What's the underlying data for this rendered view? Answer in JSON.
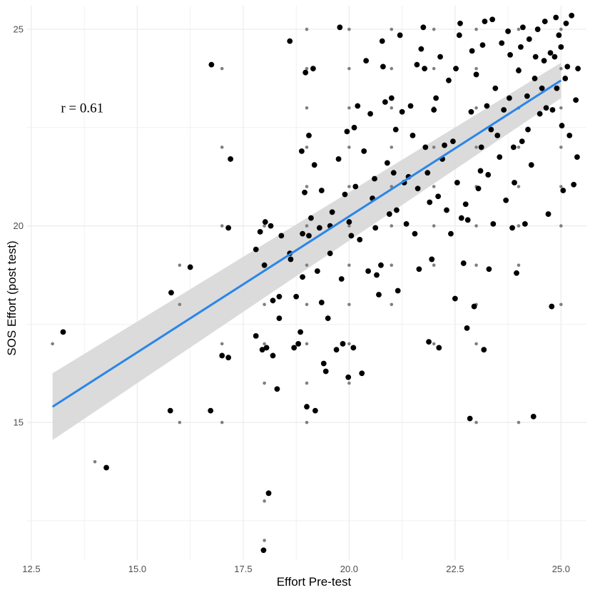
{
  "chart_data": {
    "type": "scatter",
    "title": "",
    "xlabel": "Effort Pre-test",
    "ylabel": "SOS Effort (post test)",
    "xlim": [
      12.4,
      25.6
    ],
    "ylim": [
      11.5,
      25.6
    ],
    "x_ticks": [
      12.5,
      15.0,
      17.5,
      20.0,
      22.5,
      25.0
    ],
    "x_tick_labels": [
      "12.5",
      "15.0",
      "17.5",
      "20.0",
      "22.5",
      "25.0"
    ],
    "y_ticks": [
      15,
      20,
      25
    ],
    "y_tick_labels": [
      "15",
      "20",
      "25"
    ],
    "grid": true,
    "annotation": {
      "text": "r = 0.61",
      "x": 13.7,
      "y": 23.0
    },
    "regression": {
      "x": [
        13.0,
        25.0
      ],
      "y": [
        15.4,
        23.7
      ],
      "ci_lower": [
        14.55,
        23.25
      ],
      "ci_upper": [
        16.25,
        24.15
      ],
      "line_color": "#2b86e8",
      "band_color": "#d9d9d9"
    },
    "point_color": "#000000",
    "raw_point_color": "#7f7f7f",
    "series": [
      {
        "name": "raw",
        "points": [
          [
            13,
            17
          ],
          [
            14,
            14
          ],
          [
            16,
            18
          ],
          [
            16,
            19
          ],
          [
            16,
            15
          ],
          [
            17,
            24
          ],
          [
            17,
            22
          ],
          [
            17,
            20
          ],
          [
            17,
            17
          ],
          [
            17,
            15
          ],
          [
            18,
            20
          ],
          [
            18,
            18
          ],
          [
            18,
            17
          ],
          [
            18,
            16
          ],
          [
            18,
            13
          ],
          [
            18,
            12
          ],
          [
            19,
            24
          ],
          [
            19,
            23
          ],
          [
            19,
            22
          ],
          [
            19,
            21
          ],
          [
            19,
            20
          ],
          [
            19,
            19
          ],
          [
            19,
            18
          ],
          [
            19,
            17
          ],
          [
            19,
            16
          ],
          [
            19,
            15
          ],
          [
            19,
            25
          ],
          [
            20,
            25
          ],
          [
            20,
            24
          ],
          [
            20,
            23
          ],
          [
            20,
            22
          ],
          [
            20,
            21
          ],
          [
            20,
            20
          ],
          [
            20,
            19
          ],
          [
            20,
            18
          ],
          [
            20,
            17
          ],
          [
            20,
            16
          ],
          [
            21,
            25
          ],
          [
            21,
            24
          ],
          [
            21,
            23
          ],
          [
            21,
            22
          ],
          [
            21,
            21
          ],
          [
            21,
            20
          ],
          [
            21,
            19
          ],
          [
            21,
            18
          ],
          [
            22,
            25
          ],
          [
            22,
            24
          ],
          [
            22,
            23
          ],
          [
            22,
            22
          ],
          [
            22,
            21
          ],
          [
            22,
            20
          ],
          [
            22,
            19
          ],
          [
            22,
            17
          ],
          [
            23,
            25
          ],
          [
            23,
            24
          ],
          [
            23,
            23
          ],
          [
            23,
            22
          ],
          [
            23,
            21
          ],
          [
            23,
            20
          ],
          [
            23,
            19
          ],
          [
            23,
            18
          ],
          [
            23,
            17
          ],
          [
            23,
            15
          ],
          [
            24,
            25
          ],
          [
            24,
            24
          ],
          [
            24,
            23
          ],
          [
            24,
            22
          ],
          [
            24,
            21
          ],
          [
            24,
            20
          ],
          [
            24,
            19
          ],
          [
            24,
            15
          ],
          [
            25,
            25
          ],
          [
            25,
            24
          ],
          [
            25,
            23
          ],
          [
            25,
            22
          ],
          [
            25,
            21
          ],
          [
            25,
            20
          ],
          [
            25,
            18
          ]
        ]
      },
      {
        "name": "jittered",
        "points": [
          [
            13.25,
            17.3
          ],
          [
            14.27,
            13.85
          ],
          [
            15.8,
            18.3
          ],
          [
            15.78,
            15.3
          ],
          [
            16.25,
            18.95
          ],
          [
            16.75,
            24.1
          ],
          [
            16.73,
            15.3
          ],
          [
            17.0,
            16.7
          ],
          [
            17.15,
            16.65
          ],
          [
            17.15,
            19.95
          ],
          [
            17.2,
            21.7
          ],
          [
            17.8,
            19.4
          ],
          [
            17.8,
            17.2
          ],
          [
            17.9,
            19.85
          ],
          [
            17.95,
            16.85
          ],
          [
            17.98,
            11.75
          ],
          [
            18.0,
            19.0
          ],
          [
            18.02,
            20.1
          ],
          [
            18.05,
            16.9
          ],
          [
            18.1,
            13.2
          ],
          [
            18.15,
            20.0
          ],
          [
            18.2,
            16.7
          ],
          [
            18.2,
            18.1
          ],
          [
            18.3,
            15.85
          ],
          [
            18.35,
            17.65
          ],
          [
            18.35,
            18.2
          ],
          [
            18.4,
            19.75
          ],
          [
            18.6,
            24.7
          ],
          [
            18.6,
            19.3
          ],
          [
            18.62,
            19.15
          ],
          [
            18.7,
            16.9
          ],
          [
            18.75,
            18.2
          ],
          [
            18.8,
            17.0
          ],
          [
            18.85,
            17.3
          ],
          [
            18.88,
            21.9
          ],
          [
            18.9,
            19.8
          ],
          [
            18.9,
            18.7
          ],
          [
            18.95,
            20.85
          ],
          [
            18.97,
            23.9
          ],
          [
            19.0,
            15.4
          ],
          [
            19.05,
            22.3
          ],
          [
            19.05,
            19.75
          ],
          [
            19.1,
            20.2
          ],
          [
            19.15,
            24.0
          ],
          [
            19.18,
            21.55
          ],
          [
            19.2,
            15.3
          ],
          [
            19.25,
            18.85
          ],
          [
            19.3,
            19.95
          ],
          [
            19.35,
            20.9
          ],
          [
            19.35,
            18.05
          ],
          [
            19.4,
            16.5
          ],
          [
            19.45,
            16.3
          ],
          [
            19.5,
            17.65
          ],
          [
            19.55,
            19.3
          ],
          [
            19.55,
            20.0
          ],
          [
            19.6,
            20.35
          ],
          [
            19.7,
            16.85
          ],
          [
            19.75,
            21.7
          ],
          [
            19.78,
            25.05
          ],
          [
            19.82,
            18.65
          ],
          [
            19.85,
            17.0
          ],
          [
            19.9,
            20.8
          ],
          [
            19.95,
            22.4
          ],
          [
            19.98,
            16.15
          ],
          [
            20.0,
            20.1
          ],
          [
            20.05,
            19.75
          ],
          [
            20.1,
            16.9
          ],
          [
            20.12,
            22.5
          ],
          [
            20.15,
            21.0
          ],
          [
            20.2,
            23.05
          ],
          [
            20.25,
            19.65
          ],
          [
            20.3,
            16.25
          ],
          [
            20.35,
            21.9
          ],
          [
            20.4,
            24.2
          ],
          [
            20.45,
            18.85
          ],
          [
            20.5,
            22.85
          ],
          [
            20.55,
            20.7
          ],
          [
            20.6,
            21.2
          ],
          [
            20.62,
            19.95
          ],
          [
            20.65,
            18.75
          ],
          [
            20.7,
            18.25
          ],
          [
            20.75,
            19.0
          ],
          [
            20.78,
            24.7
          ],
          [
            20.8,
            24.05
          ],
          [
            20.85,
            23.15
          ],
          [
            20.9,
            21.6
          ],
          [
            20.95,
            20.3
          ],
          [
            21.0,
            23.25
          ],
          [
            21.05,
            21.35
          ],
          [
            21.1,
            22.45
          ],
          [
            21.12,
            20.4
          ],
          [
            21.15,
            18.35
          ],
          [
            21.2,
            24.85
          ],
          [
            21.25,
            22.9
          ],
          [
            21.3,
            21.1
          ],
          [
            21.35,
            20.05
          ],
          [
            21.4,
            21.25
          ],
          [
            21.45,
            23.05
          ],
          [
            21.5,
            22.3
          ],
          [
            21.55,
            19.8
          ],
          [
            21.6,
            24.1
          ],
          [
            21.62,
            20.95
          ],
          [
            21.65,
            18.9
          ],
          [
            21.7,
            24.5
          ],
          [
            21.75,
            25.05
          ],
          [
            21.78,
            24.0
          ],
          [
            21.8,
            22.0
          ],
          [
            21.85,
            21.35
          ],
          [
            21.88,
            17.05
          ],
          [
            21.9,
            20.6
          ],
          [
            21.95,
            19.15
          ],
          [
            22.0,
            22.95
          ],
          [
            22.05,
            23.25
          ],
          [
            22.1,
            20.75
          ],
          [
            22.12,
            16.9
          ],
          [
            22.15,
            24.3
          ],
          [
            22.2,
            21.7
          ],
          [
            22.25,
            22.05
          ],
          [
            22.3,
            20.4
          ],
          [
            22.35,
            23.7
          ],
          [
            22.4,
            19.8
          ],
          [
            22.45,
            22.15
          ],
          [
            22.5,
            18.15
          ],
          [
            22.52,
            24.0
          ],
          [
            22.55,
            21.1
          ],
          [
            22.6,
            24.85
          ],
          [
            22.62,
            25.15
          ],
          [
            22.65,
            20.2
          ],
          [
            22.7,
            19.05
          ],
          [
            22.75,
            20.55
          ],
          [
            22.78,
            17.4
          ],
          [
            22.8,
            20.15
          ],
          [
            22.85,
            15.1
          ],
          [
            22.88,
            22.9
          ],
          [
            22.9,
            24.45
          ],
          [
            22.95,
            17.95
          ],
          [
            23.0,
            23.85
          ],
          [
            23.05,
            20.95
          ],
          [
            23.1,
            21.4
          ],
          [
            23.12,
            22.0
          ],
          [
            23.15,
            24.6
          ],
          [
            23.18,
            16.85
          ],
          [
            23.2,
            25.2
          ],
          [
            23.25,
            23.05
          ],
          [
            23.28,
            21.3
          ],
          [
            23.3,
            18.9
          ],
          [
            23.35,
            22.45
          ],
          [
            23.38,
            25.25
          ],
          [
            23.4,
            20.05
          ],
          [
            23.45,
            23.5
          ],
          [
            23.5,
            22.3
          ],
          [
            23.55,
            21.75
          ],
          [
            23.6,
            24.65
          ],
          [
            23.65,
            22.95
          ],
          [
            23.7,
            20.65
          ],
          [
            23.75,
            24.95
          ],
          [
            23.78,
            23.25
          ],
          [
            23.8,
            24.35
          ],
          [
            23.85,
            19.95
          ],
          [
            23.88,
            22.0
          ],
          [
            23.9,
            21.1
          ],
          [
            23.95,
            18.8
          ],
          [
            24.0,
            23.95
          ],
          [
            24.05,
            24.55
          ],
          [
            24.08,
            22.15
          ],
          [
            24.1,
            25.05
          ],
          [
            24.15,
            20.05
          ],
          [
            24.2,
            23.3
          ],
          [
            24.22,
            22.45
          ],
          [
            24.25,
            24.75
          ],
          [
            24.3,
            21.55
          ],
          [
            24.35,
            15.15
          ],
          [
            24.38,
            23.75
          ],
          [
            24.4,
            24.3
          ],
          [
            24.45,
            25.0
          ],
          [
            24.5,
            22.85
          ],
          [
            24.55,
            23.5
          ],
          [
            24.6,
            24.2
          ],
          [
            24.62,
            25.2
          ],
          [
            24.65,
            23.0
          ],
          [
            24.7,
            20.3
          ],
          [
            24.75,
            24.4
          ],
          [
            24.78,
            17.95
          ],
          [
            24.8,
            22.95
          ],
          [
            24.85,
            24.3
          ],
          [
            24.88,
            25.3
          ],
          [
            24.9,
            23.5
          ],
          [
            24.95,
            24.85
          ],
          [
            25.0,
            24.55
          ],
          [
            25.02,
            22.55
          ],
          [
            25.05,
            20.9
          ],
          [
            25.1,
            23.75
          ],
          [
            25.12,
            25.15
          ],
          [
            25.15,
            24.05
          ],
          [
            25.2,
            22.3
          ],
          [
            25.25,
            25.35
          ],
          [
            25.3,
            21.05
          ],
          [
            25.35,
            23.2
          ],
          [
            25.38,
            21.75
          ],
          [
            25.4,
            24.0
          ]
        ]
      }
    ]
  }
}
